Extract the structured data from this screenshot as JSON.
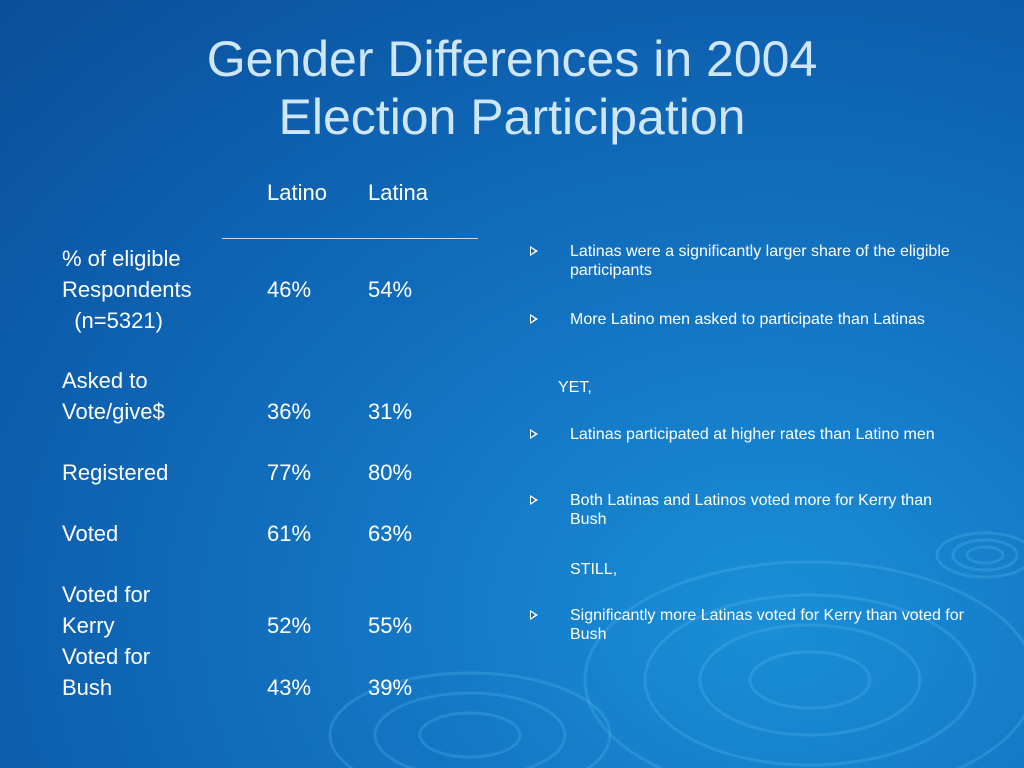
{
  "slide": {
    "title_line1": "Gender Differences in 2004",
    "title_line2": "Election Participation"
  },
  "table": {
    "col_latino": "Latino",
    "col_latina": "Latina",
    "rows": [
      {
        "label_lines": [
          "% of eligible",
          "Respondents",
          "  (n=5321)"
        ],
        "latino": "46%",
        "latina": "54%"
      },
      {
        "label_lines": [
          "Asked to",
          "Vote/give$"
        ],
        "latino": "36%",
        "latina": "31%"
      },
      {
        "label_lines": [
          "Registered"
        ],
        "latino": "77%",
        "latina": "80%"
      },
      {
        "label_lines": [
          "Voted"
        ],
        "latino": "61%",
        "latina": "63%"
      },
      {
        "label_lines": [
          "Voted for",
          "Kerry"
        ],
        "latino": "52%",
        "latina": "55%"
      },
      {
        "label_lines": [
          "Voted for",
          "Bush"
        ],
        "latino": "43%",
        "latina": "39%"
      }
    ]
  },
  "bullets": {
    "b1": "Latinas were a significantly larger share of the eligible participants",
    "b2": "More Latino men asked to participate than Latinas",
    "yet": "YET,",
    "b3": "Latinas participated at higher rates than Latino men",
    "b4": "Both Latinas and Latinos voted more for Kerry than Bush",
    "still": "STILL,",
    "b5": "Significantly more Latinas voted for Kerry than voted for Bush"
  }
}
